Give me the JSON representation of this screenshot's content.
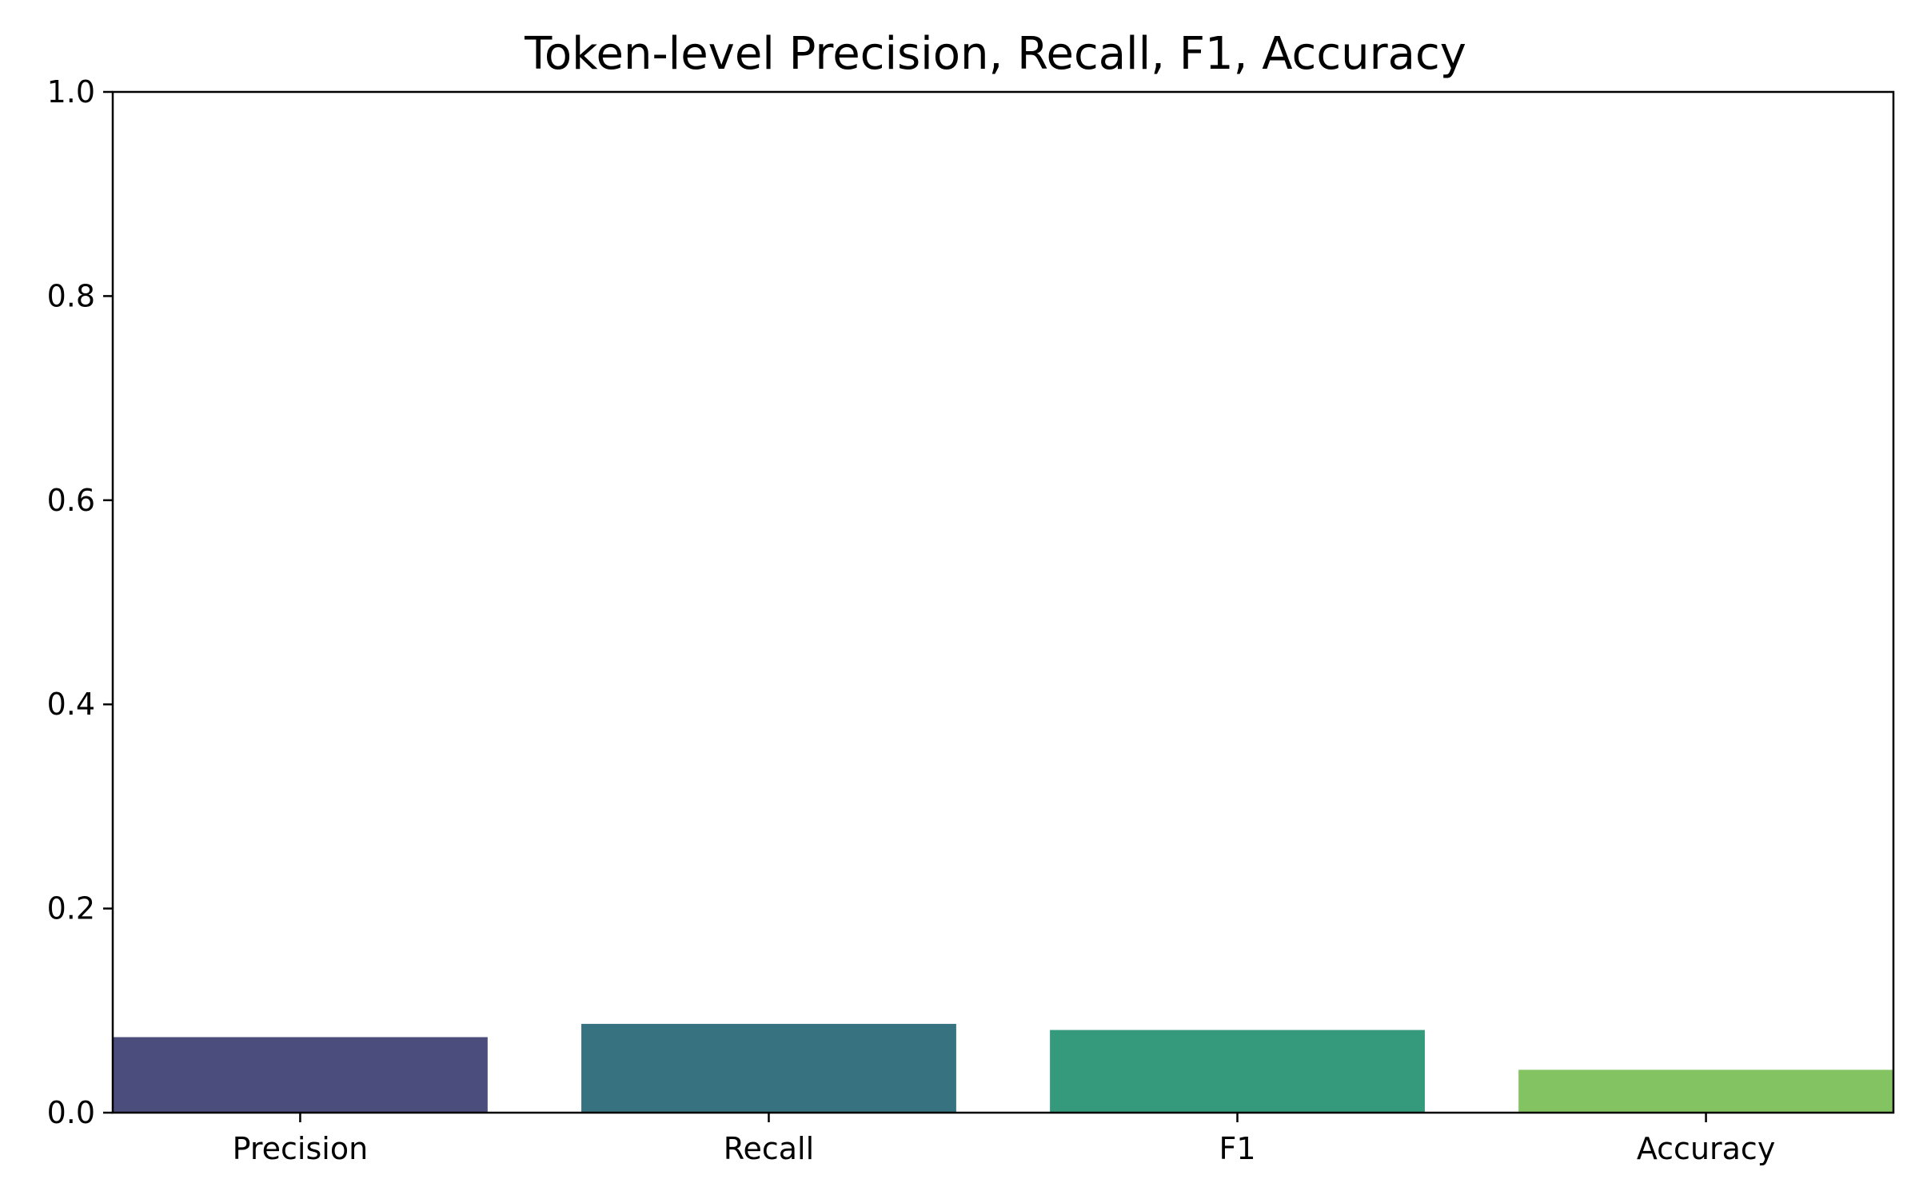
{
  "chart_data": {
    "type": "bar",
    "title": "Token-level Precision, Recall, F1, Accuracy",
    "xlabel": "",
    "ylabel": "",
    "categories": [
      "Precision",
      "Recall",
      "F1",
      "Accuracy"
    ],
    "values": [
      0.074,
      0.087,
      0.081,
      0.042
    ],
    "colors": [
      "#4b4d7d",
      "#377281",
      "#35997c",
      "#84c361"
    ],
    "ylim": [
      0,
      1.0
    ],
    "yticks": [
      0.0,
      0.2,
      0.4,
      0.6,
      0.8,
      1.0
    ],
    "ytick_labels": [
      "0.0",
      "0.2",
      "0.4",
      "0.6",
      "0.8",
      "1.0"
    ],
    "grid": false,
    "legend": "none"
  }
}
